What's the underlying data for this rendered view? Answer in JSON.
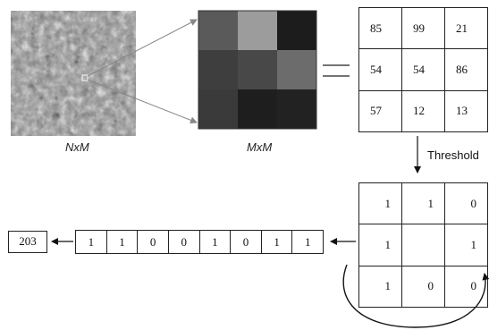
{
  "labels": {
    "source_image": "NxM",
    "neighborhood": "MxM",
    "threshold": "Threshold"
  },
  "neighborhood_gray": [
    [
      "#5a5a5a",
      "#9c9c9c",
      "#1c1c1c"
    ],
    [
      "#3e3e3e",
      "#484848",
      "#6c6c6c"
    ],
    [
      "#3a3a3a",
      "#1e1e1e",
      "#222222"
    ]
  ],
  "intensity_grid": [
    [
      "85",
      "99",
      "21"
    ],
    [
      "54",
      "54",
      "86"
    ],
    [
      "57",
      "12",
      "13"
    ]
  ],
  "binary_grid": [
    [
      "1",
      "1",
      "0"
    ],
    [
      "1",
      "",
      "1"
    ],
    [
      "1",
      "0",
      "0"
    ]
  ],
  "binary_code": [
    "1",
    "1",
    "0",
    "0",
    "1",
    "0",
    "1",
    "1"
  ],
  "decimal_result": "203",
  "colors": {
    "line": "#222222",
    "arrow_gray": "#808080",
    "texture_base": "#8a8a8a"
  }
}
